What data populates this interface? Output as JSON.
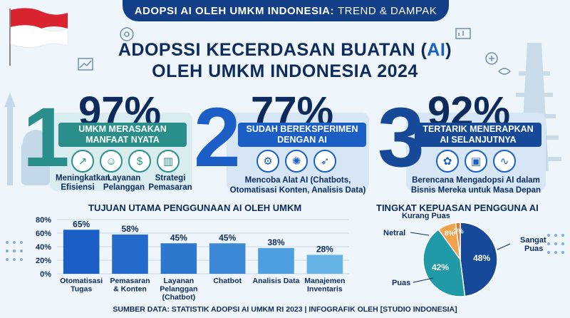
{
  "banner": {
    "bold": "ADOPSI AI OLEH UMKM INDONESIA:",
    "light": "TREND & DAMPAK"
  },
  "title": {
    "line1_pre": "ADOPSSI KECERDASAN BUATAN (",
    "line1_ai": "AI",
    "line1_post": ")",
    "line2": "OLEH UMKM INDONESIA 2024"
  },
  "stats": [
    {
      "number": "1",
      "pct": "97%",
      "strip": [
        "UMKM MERASAKAN",
        "MANFAAT NYATA"
      ],
      "icons": [
        "trend-up-icon",
        "support-person-icon",
        "money-icon",
        "strategy-chart-icon"
      ],
      "items": [
        [
          "Meningkatkan",
          "Efisiensi"
        ],
        [
          "Layanan",
          "Pelanggan"
        ],
        [
          "Strategi",
          "Pemasaran"
        ]
      ]
    },
    {
      "number": "2",
      "pct": "77%",
      "strip": [
        "SUDAH BEREKSPERIMEN",
        "DENGAN AI"
      ],
      "icons": [
        "gears-icon",
        "bulb-icon",
        "rocket-icon"
      ],
      "desc": [
        "Mencoba Alat AI (Chatbots,",
        "Otomatisasi Konten, Analisis Data)"
      ]
    },
    {
      "number": "3",
      "pct": "92%",
      "strip": [
        "TERTARIK MENERAPKAN",
        "AI SELANJUTNYA"
      ],
      "icons": [
        "plant-money-icon",
        "ai-chip-icon",
        "route-icon"
      ],
      "desc": [
        "Berencana Mengadopsi AI dalam",
        "Bisnis Mereka untuk Masa Depan"
      ]
    }
  ],
  "bar_section_title": "TUJUAN UTAMA PENGGUNAAN AI OLEH UMKM",
  "pie_section_title": "TINGKAT KEPUASAN PENGGUNA AI",
  "chart_data": [
    {
      "type": "bar",
      "title": "TUJUAN UTAMA PENGGUNAAN AI OLEH UMKM",
      "categories": [
        [
          "Otomatisasi",
          "Tugas"
        ],
        [
          "Pemasaran",
          "& Konten"
        ],
        [
          "Layanan",
          "Pelanggan",
          "(Chatbot)"
        ],
        [
          "Chatbot"
        ],
        [
          "Analisis Data"
        ],
        [
          "Manajemen",
          "Inventaris"
        ]
      ],
      "values": [
        65,
        58,
        45,
        45,
        38,
        28
      ],
      "value_labels": [
        "65%",
        "58%",
        "45%",
        "45%",
        "38%",
        "28%"
      ],
      "yticks": [
        "0%",
        "20%",
        "40%",
        "60%",
        "80%"
      ],
      "ylim": [
        0,
        80
      ],
      "colors": [
        "#1a5ec6",
        "#2369c9",
        "#2e77cf",
        "#3d89d8",
        "#4d9fdf",
        "#66b3e6"
      ],
      "grid": true
    },
    {
      "type": "pie",
      "title": "TINGKAT KEPUASAN PENGGUNA AI",
      "labels": [
        "Sangat Puas",
        "Puas",
        "Netral",
        "Kurang Puas"
      ],
      "values": [
        48,
        42,
        8,
        2
      ],
      "value_labels": [
        "48%",
        "42%",
        "8%",
        "2%"
      ],
      "colors": [
        "#164a98",
        "#1f9aa6",
        "#f0a24a",
        "#e27a2e"
      ]
    }
  ],
  "footer": "SUMBER DATA: STATISTIK ADOPSI AI UMKM RI 2023 | INFOGRAFIK OLEH [STUDIO INDONESIA]"
}
